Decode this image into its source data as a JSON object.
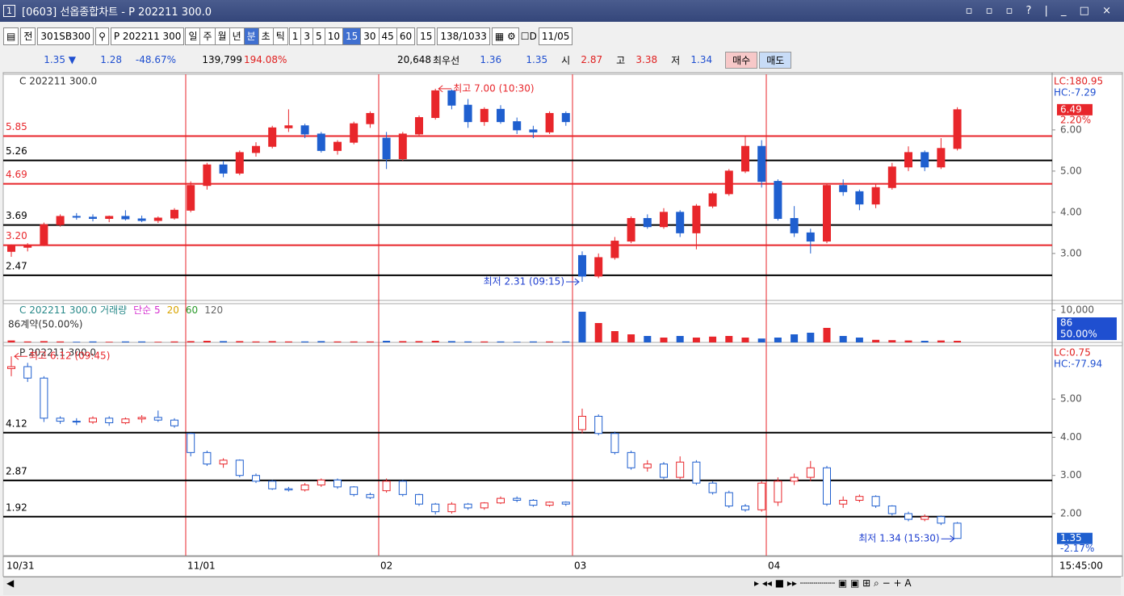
{
  "window": {
    "badge": "1",
    "title": "[0603] 선옵종합차트 - P 202211 300.0"
  },
  "toolbar": {
    "mode": "전",
    "code": "301SB300",
    "symbol": "P 202211 300",
    "periods": [
      "일",
      "주",
      "월",
      "년",
      "분",
      "초",
      "틱"
    ],
    "intervals": [
      "1",
      "3",
      "5",
      "10",
      "15",
      "30",
      "45",
      "60"
    ],
    "interval": "15",
    "count": "138",
    "total": "/1033",
    "d_label": "D",
    "date": "11/05"
  },
  "info": {
    "price": "1.35 ▼",
    "change": "1.28",
    "change_pct": "-48.67%",
    "volume": "139,799",
    "volume_pct": "194.08%",
    "oi": "20,648",
    "best_label": "최우선",
    "ask": "1.36",
    "bid": "1.35",
    "open_label": "시",
    "open": "2.87",
    "high_label": "고",
    "high": "3.38",
    "low_label": "저",
    "low": "1.34",
    "buy": "매수",
    "sell": "매도"
  },
  "chart_data": [
    {
      "type": "candlestick",
      "title": "C 202211 300.0",
      "ylim": [
        1.86,
        7.35
      ],
      "yticks": [
        {
          "value": 6,
          "label": "6.00"
        },
        {
          "value": 5,
          "label": "5.00"
        },
        {
          "value": 4,
          "label": "4.00"
        },
        {
          "value": 3,
          "label": "3.00"
        }
      ],
      "up_color": "#e8262b",
      "down_color": "#1f5fcf",
      "hollow": false,
      "levels": [
        {
          "value": 5.85,
          "label": "5.85",
          "color": "#e8262b"
        },
        {
          "value": 5.26,
          "label": "5.26",
          "color": "#000000"
        },
        {
          "value": 4.69,
          "label": "4.69",
          "color": "#e8262b"
        },
        {
          "value": 3.69,
          "label": "3.69",
          "color": "#000000"
        },
        {
          "value": 3.2,
          "label": "3.20",
          "color": "#e8262b"
        },
        {
          "value": 2.47,
          "label": "2.47",
          "color": "#000000"
        }
      ],
      "max_label": "최고 7.00 (10:30)",
      "min_label": "최저 2.31 (09:15)",
      "side_labels": [
        "LC:180.95",
        "HC:-7.29"
      ],
      "last_label": "6.49",
      "last_pct": "2.20%",
      "candles": [
        [
          3.05,
          3.22,
          2.92,
          3.18
        ],
        [
          3.15,
          3.25,
          3.05,
          3.2
        ],
        [
          3.2,
          3.75,
          3.18,
          3.7
        ],
        [
          3.7,
          3.95,
          3.65,
          3.9
        ],
        [
          3.9,
          3.98,
          3.82,
          3.88
        ],
        [
          3.88,
          3.95,
          3.78,
          3.85
        ],
        [
          3.85,
          3.92,
          3.76,
          3.9
        ],
        [
          3.9,
          4.05,
          3.8,
          3.84
        ],
        [
          3.84,
          3.92,
          3.76,
          3.8
        ],
        [
          3.8,
          3.9,
          3.74,
          3.86
        ],
        [
          3.86,
          4.1,
          3.82,
          4.05
        ],
        [
          4.05,
          4.75,
          4.0,
          4.65
        ],
        [
          4.65,
          5.2,
          4.55,
          5.15
        ],
        [
          5.15,
          5.25,
          4.85,
          4.95
        ],
        [
          4.95,
          5.5,
          4.9,
          5.45
        ],
        [
          5.45,
          5.7,
          5.35,
          5.6
        ],
        [
          5.6,
          6.1,
          5.55,
          6.05
        ],
        [
          6.05,
          6.5,
          5.95,
          6.1
        ],
        [
          6.1,
          6.15,
          5.8,
          5.9
        ],
        [
          5.9,
          5.95,
          5.45,
          5.5
        ],
        [
          5.5,
          5.75,
          5.4,
          5.7
        ],
        [
          5.7,
          6.2,
          5.65,
          6.15
        ],
        [
          6.15,
          6.45,
          6.05,
          6.4
        ],
        [
          5.8,
          5.95,
          5.05,
          5.3
        ],
        [
          5.3,
          5.95,
          5.25,
          5.9
        ],
        [
          5.9,
          6.35,
          5.85,
          6.3
        ],
        [
          6.3,
          7.0,
          6.25,
          6.95
        ],
        [
          6.95,
          6.98,
          6.5,
          6.6
        ],
        [
          6.6,
          6.75,
          6.05,
          6.2
        ],
        [
          6.2,
          6.55,
          6.1,
          6.5
        ],
        [
          6.5,
          6.6,
          6.15,
          6.2
        ],
        [
          6.2,
          6.3,
          5.9,
          6.0
        ],
        [
          6.0,
          6.1,
          5.8,
          5.95
        ],
        [
          5.95,
          6.45,
          5.9,
          6.4
        ],
        [
          6.4,
          6.45,
          6.1,
          6.2
        ],
        [
          2.95,
          3.05,
          2.31,
          2.45
        ],
        [
          2.45,
          3.0,
          2.4,
          2.9
        ],
        [
          2.9,
          3.4,
          2.85,
          3.3
        ],
        [
          3.3,
          3.9,
          3.25,
          3.85
        ],
        [
          3.85,
          3.95,
          3.6,
          3.65
        ],
        [
          3.65,
          4.1,
          3.6,
          4.0
        ],
        [
          4.0,
          4.05,
          3.4,
          3.5
        ],
        [
          3.5,
          4.2,
          3.1,
          4.15
        ],
        [
          4.15,
          4.5,
          4.1,
          4.45
        ],
        [
          4.45,
          5.05,
          4.4,
          5.0
        ],
        [
          5.0,
          5.85,
          4.95,
          5.6
        ],
        [
          5.6,
          5.75,
          4.6,
          4.75
        ],
        [
          4.75,
          4.8,
          3.8,
          3.85
        ],
        [
          3.85,
          4.15,
          3.4,
          3.5
        ],
        [
          3.5,
          3.6,
          3.0,
          3.3
        ],
        [
          3.3,
          4.7,
          3.25,
          4.65
        ],
        [
          4.65,
          4.8,
          4.4,
          4.5
        ],
        [
          4.5,
          4.55,
          4.05,
          4.2
        ],
        [
          4.2,
          4.7,
          4.1,
          4.6
        ],
        [
          4.6,
          5.2,
          4.55,
          5.1
        ],
        [
          5.1,
          5.6,
          5.0,
          5.45
        ],
        [
          5.45,
          5.5,
          5.0,
          5.1
        ],
        [
          5.1,
          5.8,
          5.05,
          5.55
        ],
        [
          5.55,
          6.55,
          5.5,
          6.49
        ]
      ]
    },
    {
      "type": "bar",
      "title": "C 202211 300.0 거래량",
      "ylim": [
        0,
        12000
      ],
      "yticks": [
        {
          "value": 10000,
          "label": "10,000"
        }
      ],
      "up_color": "#e8262b",
      "down_color": "#1f5fcf",
      "ma_labels": [
        {
          "text": "단순 5",
          "color": "#d62fd0"
        },
        {
          "text": "20",
          "color": "#d9a400"
        },
        {
          "text": "60",
          "color": "#2a9a2a"
        },
        {
          "text": "120",
          "color": "#666666"
        }
      ],
      "contracts": "86계약(50.00%)",
      "side": "86",
      "side_pct": "50.00%",
      "values": [
        600,
        300,
        400,
        300,
        200,
        300,
        200,
        300,
        300,
        200,
        300,
        400,
        500,
        400,
        400,
        300,
        400,
        300,
        300,
        400,
        300,
        300,
        300,
        500,
        400,
        400,
        500,
        400,
        300,
        300,
        300,
        200,
        300,
        300,
        300,
        9500,
        6000,
        3500,
        2500,
        2000,
        1500,
        2000,
        1500,
        1800,
        2000,
        1500,
        1200,
        1500,
        2500,
        3000,
        4500,
        2000,
        1500,
        800,
        700,
        600,
        500,
        600,
        500
      ]
    },
    {
      "type": "candlestick",
      "title": "P 202211 300.0",
      "ylim": [
        0.9,
        6.4
      ],
      "yticks": [
        {
          "value": 5,
          "label": "5.00"
        },
        {
          "value": 4,
          "label": "4.00"
        },
        {
          "value": 3,
          "label": "3.00"
        },
        {
          "value": 2,
          "label": "2.00"
        }
      ],
      "up_color": "#e8262b",
      "down_color": "#1f5fcf",
      "hollow": true,
      "levels": [
        {
          "value": 4.12,
          "label": "4.12",
          "color": "#000000"
        },
        {
          "value": 2.87,
          "label": "2.87",
          "color": "#000000"
        },
        {
          "value": 1.92,
          "label": "1.92",
          "color": "#000000"
        }
      ],
      "max_label": "최고 6.12 (09:45)",
      "min_label": "최저 1.34 (15:30)",
      "side_labels": [
        "LC:0.75",
        "HC:-77.94"
      ],
      "last_label": "1.35",
      "last_pct": "-2.17%",
      "candles": [
        [
          5.8,
          6.12,
          5.6,
          5.85
        ],
        [
          5.85,
          5.95,
          5.45,
          5.55
        ],
        [
          5.55,
          5.6,
          4.4,
          4.5
        ],
        [
          4.5,
          4.55,
          4.35,
          4.42
        ],
        [
          4.42,
          4.5,
          4.32,
          4.4
        ],
        [
          4.4,
          4.55,
          4.35,
          4.5
        ],
        [
          4.5,
          4.55,
          4.3,
          4.38
        ],
        [
          4.38,
          4.52,
          4.34,
          4.48
        ],
        [
          4.48,
          4.58,
          4.38,
          4.52
        ],
        [
          4.52,
          4.7,
          4.4,
          4.45
        ],
        [
          4.45,
          4.5,
          4.25,
          4.3
        ],
        [
          4.1,
          4.12,
          3.5,
          3.6
        ],
        [
          3.6,
          3.65,
          3.25,
          3.3
        ],
        [
          3.3,
          3.45,
          3.2,
          3.4
        ],
        [
          3.4,
          3.42,
          2.95,
          3.0
        ],
        [
          3.0,
          3.05,
          2.8,
          2.85
        ],
        [
          2.85,
          2.88,
          2.62,
          2.65
        ],
        [
          2.65,
          2.7,
          2.58,
          2.62
        ],
        [
          2.62,
          2.8,
          2.58,
          2.75
        ],
        [
          2.75,
          2.92,
          2.7,
          2.88
        ],
        [
          2.88,
          2.92,
          2.65,
          2.7
        ],
        [
          2.7,
          2.72,
          2.45,
          2.5
        ],
        [
          2.5,
          2.55,
          2.38,
          2.42
        ],
        [
          2.6,
          2.92,
          2.55,
          2.85
        ],
        [
          2.85,
          2.88,
          2.45,
          2.5
        ],
        [
          2.5,
          2.52,
          2.2,
          2.25
        ],
        [
          2.25,
          2.28,
          1.98,
          2.05
        ],
        [
          2.05,
          2.3,
          2.0,
          2.25
        ],
        [
          2.25,
          2.28,
          2.1,
          2.15
        ],
        [
          2.15,
          2.3,
          2.1,
          2.28
        ],
        [
          2.28,
          2.45,
          2.25,
          2.4
        ],
        [
          2.4,
          2.45,
          2.3,
          2.35
        ],
        [
          2.35,
          2.38,
          2.18,
          2.22
        ],
        [
          2.22,
          2.32,
          2.18,
          2.3
        ],
        [
          2.3,
          2.32,
          2.2,
          2.25
        ],
        [
          4.2,
          4.75,
          4.1,
          4.55
        ],
        [
          4.55,
          4.6,
          4.05,
          4.1
        ],
        [
          4.1,
          4.15,
          3.55,
          3.6
        ],
        [
          3.6,
          3.65,
          3.15,
          3.2
        ],
        [
          3.2,
          3.4,
          3.1,
          3.3
        ],
        [
          3.3,
          3.35,
          2.9,
          2.95
        ],
        [
          2.95,
          3.5,
          2.9,
          3.35
        ],
        [
          3.35,
          3.4,
          2.75,
          2.8
        ],
        [
          2.8,
          2.85,
          2.5,
          2.55
        ],
        [
          2.55,
          2.6,
          2.15,
          2.2
        ],
        [
          2.2,
          2.25,
          2.05,
          2.1
        ],
        [
          2.1,
          2.85,
          2.05,
          2.8
        ],
        [
          2.3,
          2.95,
          2.2,
          2.85
        ],
        [
          2.85,
          3.05,
          2.75,
          2.95
        ],
        [
          2.95,
          3.38,
          2.85,
          3.2
        ],
        [
          3.2,
          3.25,
          2.2,
          2.25
        ],
        [
          2.25,
          2.45,
          2.15,
          2.35
        ],
        [
          2.35,
          2.5,
          2.3,
          2.45
        ],
        [
          2.45,
          2.48,
          2.15,
          2.2
        ],
        [
          2.2,
          2.22,
          1.95,
          2.0
        ],
        [
          2.0,
          2.05,
          1.8,
          1.85
        ],
        [
          1.85,
          1.98,
          1.8,
          1.92
        ],
        [
          1.92,
          1.95,
          1.7,
          1.75
        ],
        [
          1.75,
          1.78,
          1.34,
          1.35
        ]
      ]
    }
  ],
  "x_axis": {
    "labels": [
      "10/31",
      "11/01",
      "02",
      "03",
      "04"
    ],
    "time": "15:45:00"
  }
}
